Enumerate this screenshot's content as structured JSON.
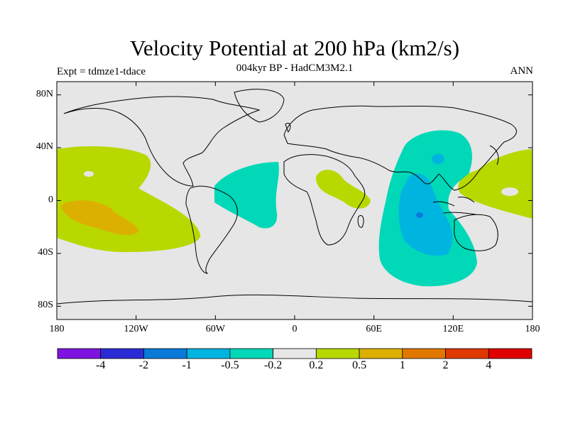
{
  "header": {
    "title": "Velocity Potential at 200 hPa (km2/s)",
    "subtitle": "004kyr BP - HadCM3M2.1",
    "experiment": "Expt = tdmze1-tdace",
    "season": "ANN"
  },
  "map": {
    "projection": "cylindrical-equidistant",
    "lat_range": [
      -90,
      90
    ],
    "lon_range": [
      -180,
      180
    ],
    "lat_ticks": [
      {
        "value": 80,
        "label": "80N"
      },
      {
        "value": 40,
        "label": "40N"
      },
      {
        "value": 0,
        "label": "0"
      },
      {
        "value": -40,
        "label": "40S"
      },
      {
        "value": -80,
        "label": "80S"
      }
    ],
    "lon_ticks": [
      {
        "value": -180,
        "label": "180"
      },
      {
        "value": -120,
        "label": "120W"
      },
      {
        "value": -60,
        "label": "60W"
      },
      {
        "value": 0,
        "label": "0"
      },
      {
        "value": 60,
        "label": "60E"
      },
      {
        "value": 120,
        "label": "120E"
      },
      {
        "value": 180,
        "label": "180"
      }
    ],
    "background_color": "#e6e6e6",
    "coastline_color": "#000000"
  },
  "colorbar": {
    "colors": [
      "#7f14e0",
      "#2b2bd6",
      "#0a7ad8",
      "#00b4e0",
      "#00d8b8",
      "#e6e6e6",
      "#b8d800",
      "#dcb000",
      "#e07800",
      "#e03800",
      "#e00000"
    ],
    "labels": [
      "-4",
      "-2",
      "-1",
      "-0.5",
      "-0.2",
      "0.2",
      "0.5",
      "1",
      "2",
      "4"
    ]
  }
}
